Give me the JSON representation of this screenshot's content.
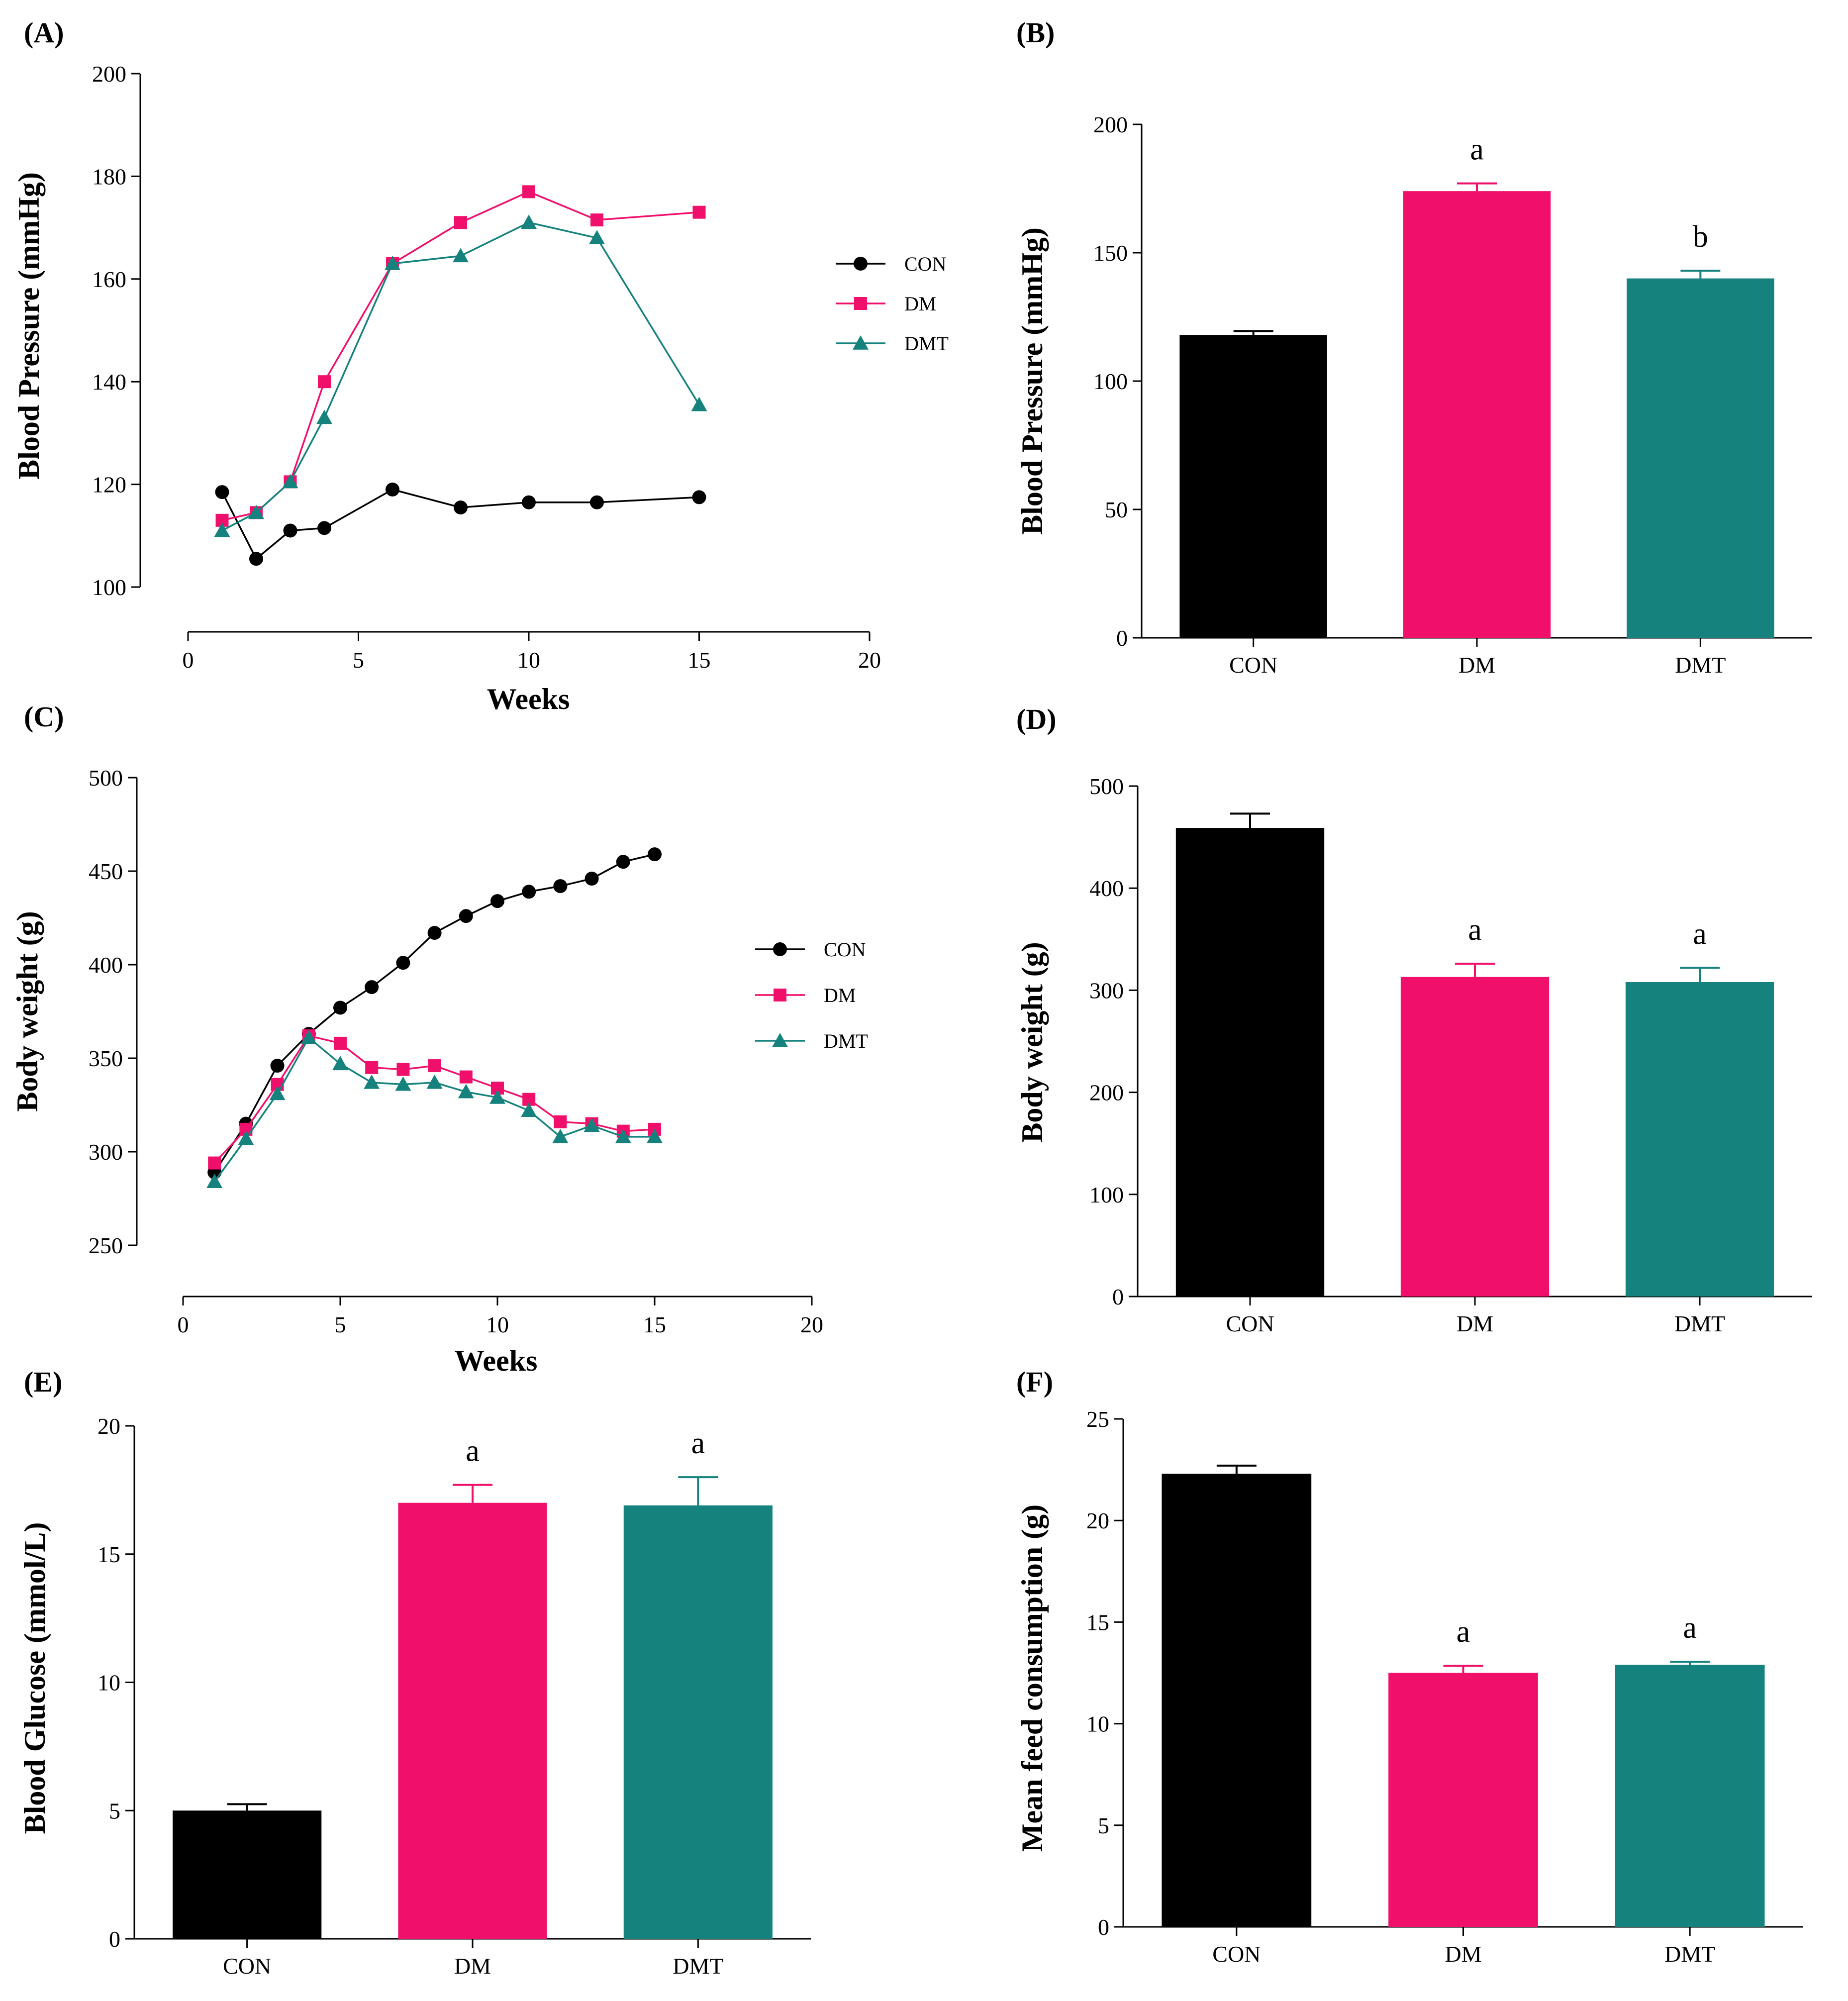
{
  "colors": {
    "CON": "#000000",
    "DM": "#f0106c",
    "DMT": "#16827e"
  },
  "chart_data": [
    {
      "id": "A",
      "type": "line",
      "panel_label": "(A)",
      "xlabel": "Weeks",
      "ylabel": "Blood Pressure (mmHg)",
      "xlim": [
        0,
        20
      ],
      "ylim": [
        100,
        200
      ],
      "xticks": [
        0,
        5,
        10,
        15,
        20
      ],
      "yticks": [
        100,
        120,
        140,
        160,
        180,
        200
      ],
      "legend": "right",
      "series": [
        {
          "name": "CON",
          "marker": "circle",
          "x": [
            1,
            2,
            3,
            4,
            6,
            8,
            10,
            12,
            15
          ],
          "y": [
            118.5,
            105.5,
            111,
            111.5,
            119,
            115.5,
            116.5,
            116.5,
            117.5
          ]
        },
        {
          "name": "DM",
          "marker": "square",
          "x": [
            1,
            2,
            3,
            4,
            6,
            8,
            10,
            12,
            15
          ],
          "y": [
            113,
            114.5,
            120.5,
            140,
            163,
            171,
            177,
            171.5,
            173
          ]
        },
        {
          "name": "DMT",
          "marker": "triangle",
          "x": [
            1,
            2,
            3,
            4,
            6,
            8,
            10,
            12,
            15
          ],
          "y": [
            111,
            114.5,
            120.5,
            133,
            163,
            164.5,
            171,
            168,
            135.5
          ]
        }
      ]
    },
    {
      "id": "B",
      "type": "bar",
      "panel_label": "(B)",
      "xlabel": "",
      "ylabel": "Blood Pressure (mmHg)",
      "ylim": [
        0,
        200
      ],
      "yticks": [
        0,
        50,
        100,
        150,
        200
      ],
      "categories": [
        "CON",
        "DM",
        "DMT"
      ],
      "values": [
        118,
        174,
        140
      ],
      "errors": [
        1.5,
        3,
        3
      ],
      "significance": [
        "",
        "a",
        "b"
      ]
    },
    {
      "id": "C",
      "type": "line",
      "panel_label": "(C)",
      "xlabel": "Weeks",
      "ylabel": "Body weight (g)",
      "xlim": [
        0,
        20
      ],
      "ylim": [
        250,
        500
      ],
      "xticks": [
        0,
        5,
        10,
        15,
        20
      ],
      "yticks": [
        250,
        300,
        350,
        400,
        450,
        500
      ],
      "legend": "right",
      "series": [
        {
          "name": "CON",
          "marker": "circle",
          "x": [
            1,
            2,
            3,
            4,
            5,
            6,
            7,
            8,
            9,
            10,
            11,
            12,
            13,
            14,
            15
          ],
          "y": [
            289,
            315,
            346,
            363,
            377,
            388,
            401,
            417,
            426,
            434,
            439,
            442,
            446,
            455,
            459
          ]
        },
        {
          "name": "DM",
          "marker": "square",
          "x": [
            1,
            2,
            3,
            4,
            5,
            6,
            7,
            8,
            9,
            10,
            11,
            12,
            13,
            14,
            15
          ],
          "y": [
            294,
            312,
            336,
            362,
            358,
            345,
            344,
            346,
            340,
            334,
            328,
            316,
            315,
            311,
            312
          ]
        },
        {
          "name": "DMT",
          "marker": "triangle",
          "x": [
            1,
            2,
            3,
            4,
            5,
            6,
            7,
            8,
            9,
            10,
            11,
            12,
            13,
            14,
            15
          ],
          "y": [
            284,
            307,
            331,
            361,
            347,
            337,
            336,
            337,
            332,
            329,
            322,
            308,
            314,
            308,
            308
          ]
        }
      ]
    },
    {
      "id": "D",
      "type": "bar",
      "panel_label": "(D)",
      "xlabel": "",
      "ylabel": "Body weight (g)",
      "ylim": [
        0,
        500
      ],
      "yticks": [
        0,
        100,
        200,
        300,
        400,
        500
      ],
      "categories": [
        "CON",
        "DM",
        "DMT"
      ],
      "values": [
        459,
        313,
        308
      ],
      "errors": [
        14,
        13,
        14
      ],
      "significance": [
        "",
        "a",
        "a"
      ]
    },
    {
      "id": "E",
      "type": "bar",
      "panel_label": "(E)",
      "xlabel": "",
      "ylabel": "Blood Glucose (mmol/L)",
      "ylim": [
        0,
        20
      ],
      "yticks": [
        0,
        5,
        10,
        15,
        20
      ],
      "categories": [
        "CON",
        "DM",
        "DMT"
      ],
      "values": [
        5.0,
        17.0,
        16.9
      ],
      "errors": [
        0.25,
        0.7,
        1.1
      ],
      "significance": [
        "",
        "a",
        "a"
      ]
    },
    {
      "id": "F",
      "type": "bar",
      "panel_label": "(F)",
      "xlabel": "",
      "ylabel": "Mean feed consumption (g)",
      "ylim": [
        0,
        25
      ],
      "yticks": [
        0,
        5,
        10,
        15,
        20,
        25
      ],
      "categories": [
        "CON",
        "DM",
        "DMT"
      ],
      "values": [
        22.3,
        12.5,
        12.9
      ],
      "errors": [
        0.4,
        0.35,
        0.15
      ],
      "significance": [
        "",
        "a",
        "a"
      ]
    }
  ]
}
